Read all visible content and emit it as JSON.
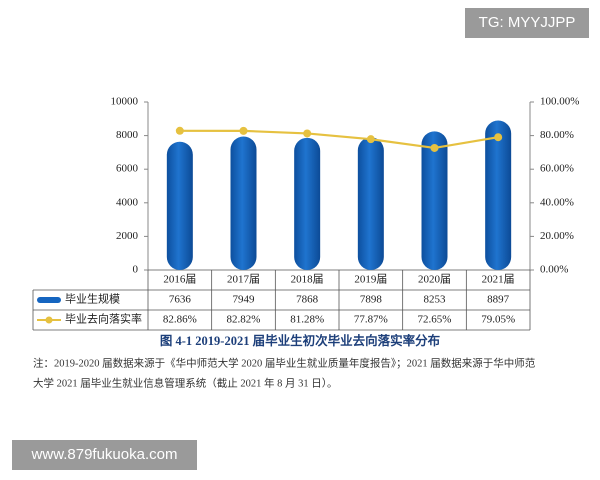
{
  "chart_data": {
    "type": "bar",
    "title": "图 4-1 2019-2021 届毕业生初次毕业去向落实率分布",
    "note_lines": [
      "注：2019-2020 届数据来源于《华中师范大学 2020 届毕业生就业质量年度报告》；2021 届数据来源于华中师范",
      "大学 2021 届毕业生就业信息管理系统（截止 2021 年 8 月 31 日）。"
    ],
    "categories": [
      "2016届",
      "2017届",
      "2018届",
      "2019届",
      "2020届",
      "2021届"
    ],
    "series": [
      {
        "name": "毕业生规模",
        "type": "bar",
        "color": "#1565c0",
        "values": [
          7636,
          7949,
          7868,
          7898,
          8253,
          8897
        ]
      },
      {
        "name": "毕业去向落实率",
        "type": "line",
        "axis": "y2",
        "color": "#e6c140",
        "values": [
          82.86,
          82.82,
          81.28,
          77.87,
          72.65,
          79.05
        ],
        "value_labels": [
          "82.86%",
          "82.82%",
          "81.28%",
          "77.87%",
          "72.65%",
          "79.05%"
        ]
      }
    ],
    "ylim": [
      0,
      10000
    ],
    "yticks": [
      0,
      2000,
      4000,
      6000,
      8000,
      10000
    ],
    "y2lim": [
      0,
      100
    ],
    "y2ticks": [
      {
        "value": 0,
        "label": "0.00%"
      },
      {
        "value": 20,
        "label": "20.00%"
      },
      {
        "value": 40,
        "label": "40.00%"
      },
      {
        "value": 60,
        "label": "60.00%"
      },
      {
        "value": 80,
        "label": "80.00%"
      },
      {
        "value": 100,
        "label": "100.00%"
      }
    ],
    "grid": false
  },
  "watermarks": {
    "top_right": "TG: MYYJJPP",
    "bottom_left": "www.879fukuoka.com"
  }
}
